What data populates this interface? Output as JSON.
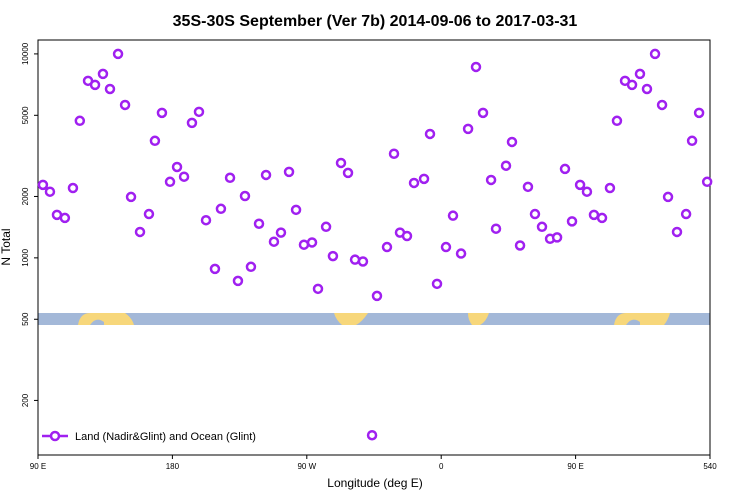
{
  "chart_data": {
    "type": "scatter",
    "title": "35S-30S September (Ver 7b)   2014-09-06 to 2017-03-31",
    "x_label": "Longitude (deg E)",
    "y_label": "N Total",
    "log_y": true,
    "color": "#a020f0",
    "xlim": [
      90,
      540
    ],
    "ylim": [
      108,
      11700
    ],
    "xticks": [
      {
        "value": 90,
        "label": "90 E"
      },
      180,
      {
        "value": 270,
        "label": "90 W"
      },
      {
        "value": 360,
        "label": "0"
      },
      {
        "value": 450,
        "label": "90 E"
      },
      540
    ],
    "yticks": [
      200,
      500,
      1000,
      2000,
      5000,
      10000
    ],
    "series": [
      {
        "name": "Land (Nadir&Glint) and Ocean (Glint)",
        "color": "#a020f0",
        "x": [
          93.3,
          98,
          102.7,
          108,
          113.4,
          118,
          123.5,
          128.2,
          133.5,
          138.2,
          143.6,
          148.3,
          152.3,
          158.3,
          164.3,
          168.3,
          173,
          178.4,
          183.1,
          187.8,
          193.1,
          197.8,
          202.5,
          208.5,
          212.5,
          218.6,
          223.9,
          228.6,
          232.6,
          238,
          242.7,
          248,
          252.7,
          258.1,
          262.8,
          268.1,
          273.5,
          277.5,
          282.9,
          287.5,
          292.9,
          297.6,
          302.3,
          307.6,
          313.7,
          317,
          323.7,
          328.4,
          332.4,
          337.1,
          341.8,
          348.5,
          352.5,
          357.2,
          363.2,
          367.9,
          373.3,
          378,
          383.3,
          388,
          393.4,
          396.7,
          403.4,
          407.4,
          412.8,
          418.1,
          422.8,
          427.5,
          432.9,
          437.6,
          442.9,
          447.6,
          453,
          457.6,
          462.3,
          467.7,
          473,
          477.7,
          483.1,
          487.8,
          493.1,
          497.8,
          503.2,
          507.9,
          511.9,
          517.9,
          524,
          528,
          532.7,
          538.1
        ],
        "values": [
          2280,
          2110,
          1625,
          1570,
          2200,
          4700,
          7380,
          7050,
          7980,
          6730,
          10000,
          5620,
          1990,
          1340,
          1640,
          3750,
          5140,
          2360,
          2790,
          2500,
          4590,
          5200,
          1530,
          883,
          1740,
          2470,
          771,
          2010,
          904,
          1470,
          2550,
          1200,
          1330,
          2640,
          1720,
          1160,
          1190,
          705,
          1420,
          1020,
          2920,
          2610,
          980,
          960,
          135,
          651,
          1130,
          3240,
          1330,
          1280,
          2330,
          2440,
          4050,
          746,
          1130,
          1610,
          1050,
          4290,
          8630,
          5140,
          2410,
          1390,
          2830,
          3700,
          1150,
          2230,
          1640,
          1420,
          1240,
          1260,
          2730,
          1510,
          2280,
          2110,
          1625,
          1570,
          2200,
          4700,
          7380,
          7050,
          7980,
          6730,
          10000,
          5620,
          1990,
          1340,
          1640,
          3750,
          5140,
          2360
        ]
      }
    ]
  }
}
